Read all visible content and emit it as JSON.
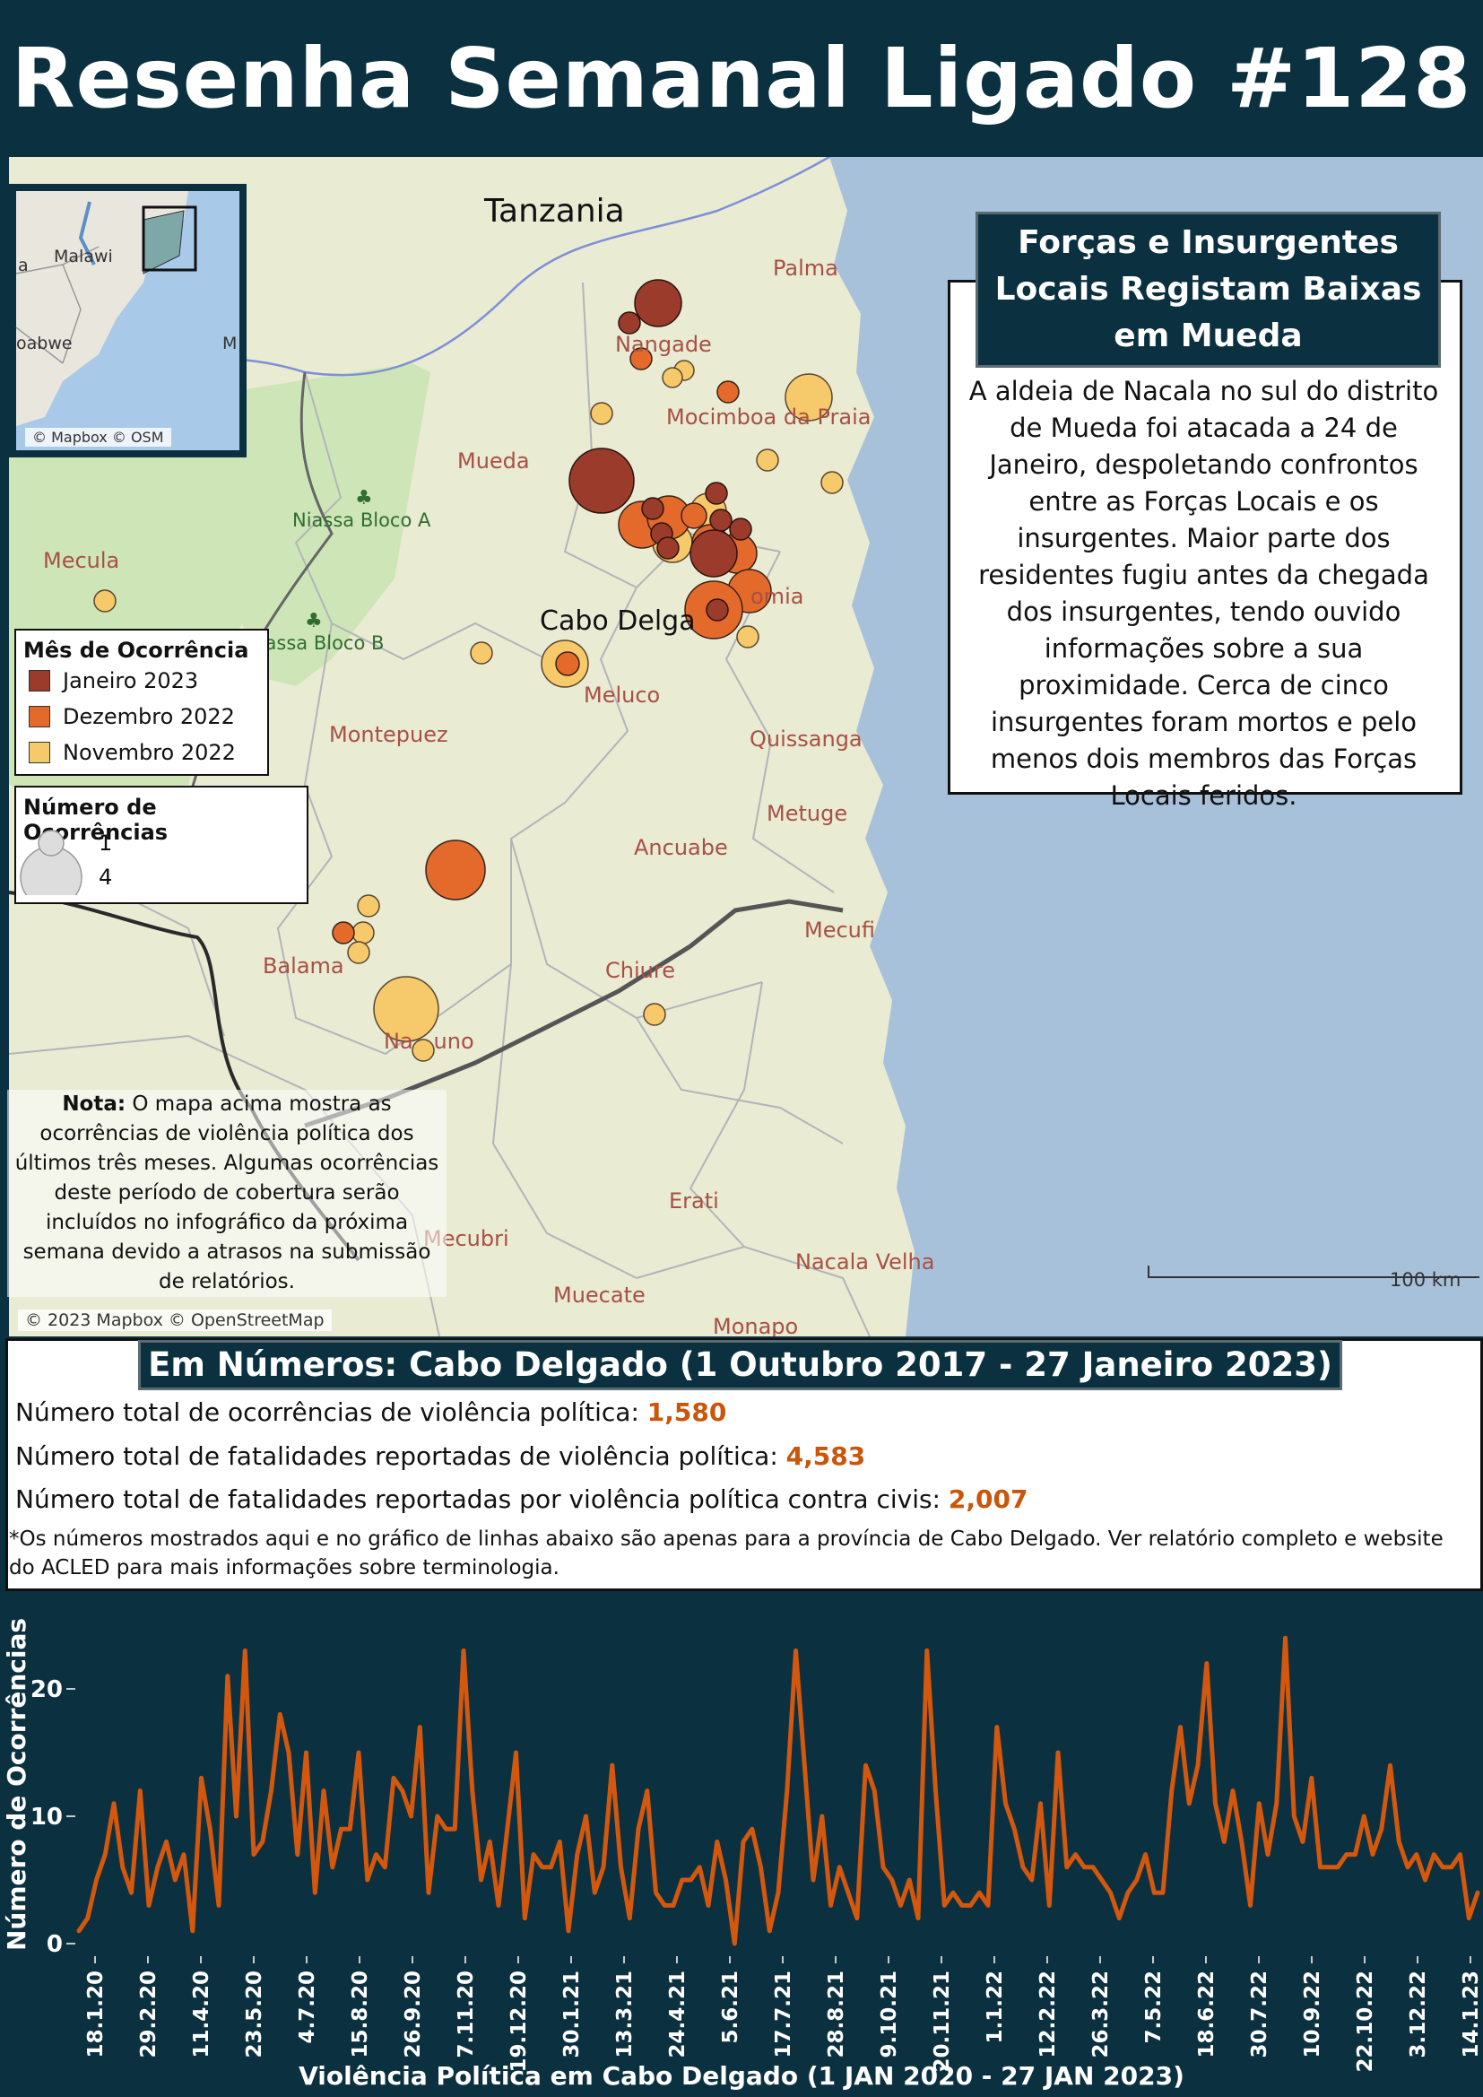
{
  "header": {
    "title": "Resenha Semanal Ligado #128"
  },
  "map": {
    "countries": [
      "Tanzania"
    ],
    "places": [
      "Palma",
      "Nangade",
      "Mocimboa da Praia",
      "Mueda",
      "Mecula",
      "Cabo Delga",
      "omia",
      "Meluco",
      "Montepuez",
      "Quissanga",
      "Metuge",
      "Ancuabe",
      "Mecufi",
      "Balama",
      "Chiure",
      "Na   uno",
      "Erati",
      "Mecubri",
      "Nacala Velha",
      "Muecate",
      "Monapo"
    ],
    "parks": [
      "Niassa Bloco A",
      "Niassa Bloco B"
    ],
    "inset": {
      "labels": [
        "Malawi",
        "a",
        "oabwe",
        "M"
      ],
      "attribution": "© Mapbox © OSM"
    },
    "attribution": "© 2023 Mapbox © OpenStreetMap",
    "scale_label": "100 km"
  },
  "story": {
    "heading": "Forças e Insurgentes Locais Registam Baixas em Mueda",
    "body": "A aldeia de Nacala no sul do distrito de Mueda foi atacada a 24 de Janeiro, despoletando confrontos entre as Forças Locais e os insurgentes. Maior parte dos residentes fugiu antes da chegada dos insurgentes, tendo ouvido informações sobre a sua proximidade. Cerca de cinco insurgentes foram mortos e pelo menos dois membros das Forças Locais feridos."
  },
  "legend_month": {
    "title": "Mês de Ocorrência",
    "items": [
      {
        "label": "Janeiro 2023",
        "color": "#9b3b2c"
      },
      {
        "label": "Dezembro 2022",
        "color": "#e36a2a"
      },
      {
        "label": "Novembro 2022",
        "color": "#f6c96a"
      }
    ]
  },
  "legend_size": {
    "title": "Número de Ocorrências",
    "items": [
      "1",
      "4"
    ]
  },
  "note": {
    "bold": "Nota:",
    "text": " O mapa acima mostra as ocorrências de violência política dos últimos três meses. Algumas ocorrências deste período de cobertura serão incluídos no infográfico da próxima semana devido a atrasos na submissão de relatórios."
  },
  "stats": {
    "heading": "Em Números: Cabo Delgado (1 Outubro 2017 - 27 Janeiro 2023)",
    "lines": [
      {
        "label": "Número total de ocorrências de violência política: ",
        "value": "1,580"
      },
      {
        "label": "Número total de fatalidades reportadas de violência política: ",
        "value": "4,583"
      },
      {
        "label": "Número total de fatalidades reportadas por violência política contra civis: ",
        "value": "2,007"
      }
    ],
    "footnote": "*Os números mostrados aqui e no gráfico de linhas abaixo são apenas para a província de Cabo Delgado. Ver relatório completo e website do ACLED para mais informações sobre terminologia."
  },
  "colors": {
    "navy": "#0b3140",
    "accent": "#c9560a",
    "line": "#d4570e"
  },
  "chart_data": {
    "type": "line",
    "xlabel": "Violência Política em Cabo Delgado (1 JAN 2020 - 27 JAN  2023)",
    "ylabel": "Número de Ocorrências",
    "ylim": [
      0,
      25
    ],
    "yticks": [
      0,
      10,
      20
    ],
    "xticks": [
      "18.1.20",
      "29.2.20",
      "11.4.20",
      "23.5.20",
      "4.7.20",
      "15.8.20",
      "26.9.20",
      "7.11.20",
      "19.12.20",
      "30.1.21",
      "13.3.21",
      "24.4.21",
      "5.6.21",
      "17.7.21",
      "28.8.21",
      "9.10.21",
      "20.11.21",
      "1.1.22",
      "12.2.22",
      "26.3.22",
      "7.5.22",
      "18.6.22",
      "30.7.22",
      "10.9.22",
      "22.10.22",
      "3.12.22",
      "14.1.23"
    ],
    "series": [
      {
        "values": [
          1,
          2,
          5,
          7,
          11,
          6,
          4,
          12,
          3,
          6,
          8,
          5,
          7,
          1,
          13,
          9,
          3,
          21,
          10,
          23,
          7,
          8,
          12,
          18,
          15,
          7,
          15,
          4,
          12,
          6,
          9,
          9,
          15,
          5,
          7,
          6,
          13,
          12,
          10,
          17,
          4,
          10,
          9,
          9,
          23,
          12,
          5,
          8,
          3,
          9,
          15,
          2,
          7,
          6,
          6,
          8,
          1,
          7,
          10,
          4,
          6,
          14,
          6,
          2,
          9,
          12,
          4,
          3,
          3,
          5,
          5,
          6,
          3,
          8,
          5,
          0,
          8,
          9,
          6,
          1,
          4,
          12,
          23,
          14,
          5,
          10,
          3,
          6,
          4,
          2,
          14,
          12,
          6,
          5,
          3,
          5,
          2,
          23,
          12,
          3,
          4,
          3,
          3,
          4,
          3,
          17,
          11,
          9,
          6,
          5,
          11,
          3,
          15,
          6,
          7,
          6,
          6,
          5,
          4,
          2,
          4,
          5,
          7,
          4,
          4,
          12,
          17,
          11,
          14,
          22,
          11,
          8,
          12,
          8,
          3,
          11,
          7,
          11,
          24,
          10,
          8,
          13,
          6,
          6,
          6,
          7,
          7,
          10,
          7,
          9,
          14,
          8,
          6,
          7,
          5,
          7,
          6,
          6,
          7,
          2,
          4
        ]
      }
    ]
  }
}
